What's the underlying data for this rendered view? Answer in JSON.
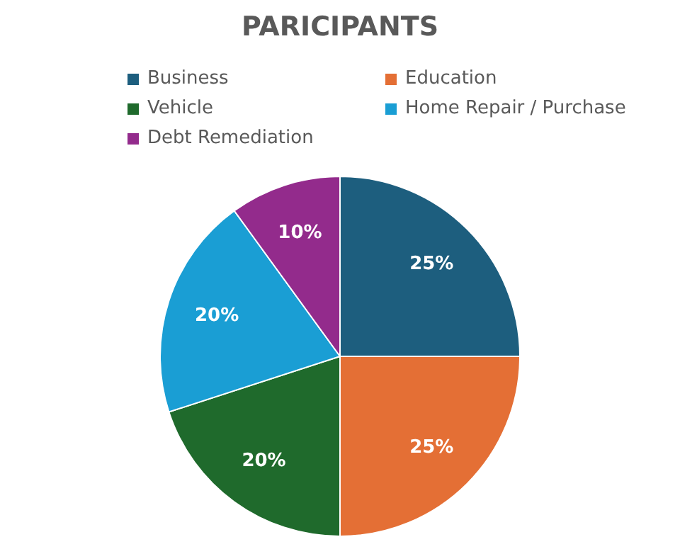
{
  "chart_data": {
    "type": "pie",
    "title": "PARICIPANTS",
    "categories": [
      "Business",
      "Education",
      "Vehicle",
      "Home Repair / Purchase",
      "Debt Remediation"
    ],
    "values": [
      25,
      25,
      20,
      20,
      10
    ],
    "colors": [
      "#1d5e7e",
      "#e46f35",
      "#1f6a2c",
      "#1a9ed4",
      "#932b8c"
    ],
    "value_labels": [
      "25%",
      "25%",
      "20%",
      "20%",
      "10%"
    ],
    "legend": "top"
  }
}
